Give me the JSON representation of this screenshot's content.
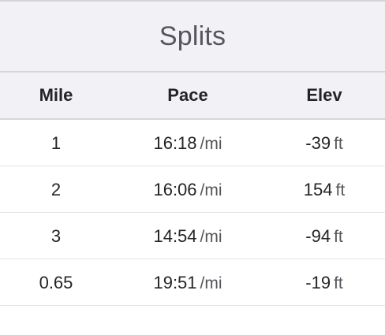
{
  "title": "Splits",
  "columns": {
    "mile": "Mile",
    "pace": "Pace",
    "elev": "Elev"
  },
  "rows": [
    {
      "mile": "1",
      "pace": "16:18",
      "pace_unit": "/mi",
      "elev": "-39",
      "elev_unit": "ft"
    },
    {
      "mile": "2",
      "pace": "16:06",
      "pace_unit": "/mi",
      "elev": "154",
      "elev_unit": "ft"
    },
    {
      "mile": "3",
      "pace": "14:54",
      "pace_unit": "/mi",
      "elev": "-94",
      "elev_unit": "ft"
    },
    {
      "mile": "0.65",
      "pace": "19:51",
      "pace_unit": "/mi",
      "elev": "-19",
      "elev_unit": "ft"
    }
  ]
}
